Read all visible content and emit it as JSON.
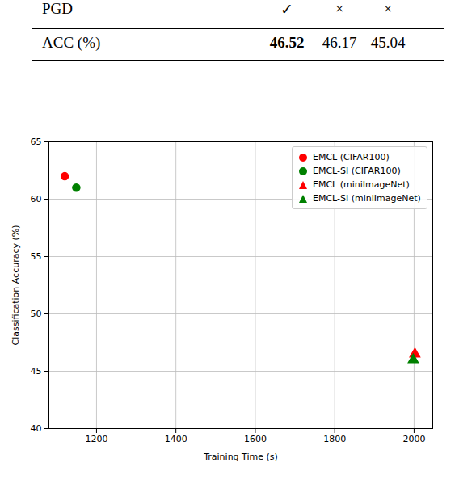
{
  "table": {
    "rows": [
      [
        "PGD",
        "✓",
        "×",
        "×"
      ],
      [
        "ACC (%)",
        "46.52",
        "46.17",
        "45.04"
      ]
    ]
  },
  "chart_data": {
    "type": "scatter",
    "x_label": "Training Time (s)",
    "y_label": "Classification Accuracy (%)",
    "series": [
      {
        "name": "EMCL (CIFAR100)",
        "color": "red",
        "marker": "circle",
        "x": [
          1120
        ],
        "values": [
          62.0
        ]
      },
      {
        "name": "EMCL-SI (CIFAR100)",
        "color": "green",
        "marker": "circle",
        "x": [
          1149
        ],
        "values": [
          61.0
        ]
      },
      {
        "name": "EMCL (miniImageNet)",
        "color": "red",
        "marker": "triangle",
        "x": [
          2002
        ],
        "values": [
          46.5
        ]
      },
      {
        "name": "EMCL-SI (miniImageNet)",
        "color": "green",
        "marker": "triangle",
        "x": [
          1998
        ],
        "values": [
          46.0
        ]
      }
    ],
    "xlim": [
      1080,
      2047
    ],
    "xticks": [
      1200,
      1400,
      1600,
      1800,
      2000
    ],
    "ylim": [
      40,
      65
    ],
    "yticks": [
      40,
      45,
      50,
      55,
      60,
      65
    ],
    "grid": true,
    "legend": "upper right"
  }
}
